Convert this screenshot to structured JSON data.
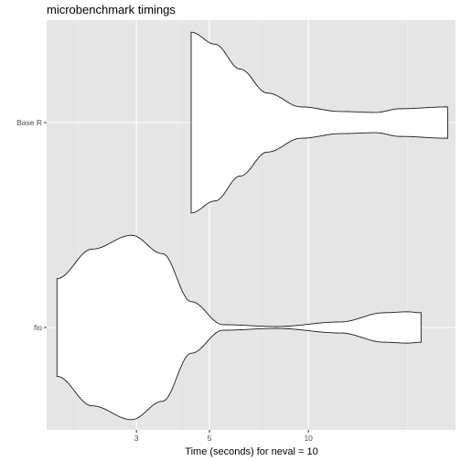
{
  "chart_data": {
    "type": "violin",
    "title": "microbenchmark timings",
    "xlabel": "Time (seconds) for neval = 10",
    "ylabel": "",
    "x_scale": "log10",
    "xlim": [
      1.6,
      28
    ],
    "x_ticks": [
      3,
      5,
      10
    ],
    "x_minor_ticks": [
      2,
      4,
      7,
      20
    ],
    "categories": [
      "fio",
      "Base R"
    ],
    "grid": true,
    "background": "#e5e5e5",
    "series": [
      {
        "category": "Base R",
        "range": [
          4.4,
          26.5
        ],
        "density_profile": [
          [
            4.4,
            0.98
          ],
          [
            5.2,
            0.85
          ],
          [
            6.2,
            0.58
          ],
          [
            7.5,
            0.32
          ],
          [
            9.5,
            0.17
          ],
          [
            12.5,
            0.12
          ],
          [
            16,
            0.11
          ],
          [
            19,
            0.15
          ],
          [
            26.5,
            0.17
          ]
        ]
      },
      {
        "category": "fio",
        "range": [
          1.72,
          22
        ],
        "density_profile": [
          [
            1.72,
            0.53
          ],
          [
            2.2,
            0.85
          ],
          [
            2.9,
            1.0
          ],
          [
            3.6,
            0.8
          ],
          [
            4.4,
            0.28
          ],
          [
            5.5,
            0.03
          ],
          [
            8,
            0.01
          ],
          [
            12.5,
            0.06
          ],
          [
            17,
            0.16
          ],
          [
            20,
            0.17
          ],
          [
            22,
            0.16
          ]
        ]
      }
    ]
  }
}
